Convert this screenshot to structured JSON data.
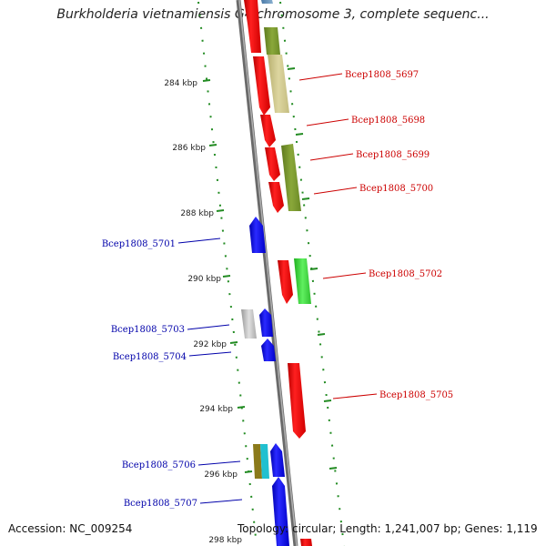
{
  "title": "Burkholderia vietnamiensis G4 chromosome 3, complete sequenc...",
  "accession": "Accession: NC_009254",
  "summary": "Topology: circular; Length: 1,241,007 bp; Genes: 1,119",
  "ticks": [
    {
      "label": "284 kbp"
    },
    {
      "label": "286 kbp"
    },
    {
      "label": "288 kbp"
    },
    {
      "label": "290 kbp"
    },
    {
      "label": "292 kbp"
    },
    {
      "label": "294 kbp"
    },
    {
      "label": "296 kbp"
    },
    {
      "label": "298 kbp"
    }
  ],
  "genes": [
    {
      "label": "Bcep1808_5697",
      "strand": "forward"
    },
    {
      "label": "Bcep1808_5698",
      "strand": "forward"
    },
    {
      "label": "Bcep1808_5699",
      "strand": "forward"
    },
    {
      "label": "Bcep1808_5700",
      "strand": "forward"
    },
    {
      "label": "Bcep1808_5701",
      "strand": "reverse"
    },
    {
      "label": "Bcep1808_5702",
      "strand": "forward"
    },
    {
      "label": "Bcep1808_5703",
      "strand": "reverse"
    },
    {
      "label": "Bcep1808_5704",
      "strand": "reverse"
    },
    {
      "label": "Bcep1808_5705",
      "strand": "forward"
    },
    {
      "label": "Bcep1808_5706",
      "strand": "reverse"
    },
    {
      "label": "Bcep1808_5707",
      "strand": "reverse"
    }
  ],
  "colors": {
    "forward_label": "#cc0000",
    "reverse_label": "#0000aa",
    "forward_gene": "#ff0000",
    "reverse_gene": "#0000ff",
    "backbone": "#888888",
    "ticks": "#228b22"
  }
}
